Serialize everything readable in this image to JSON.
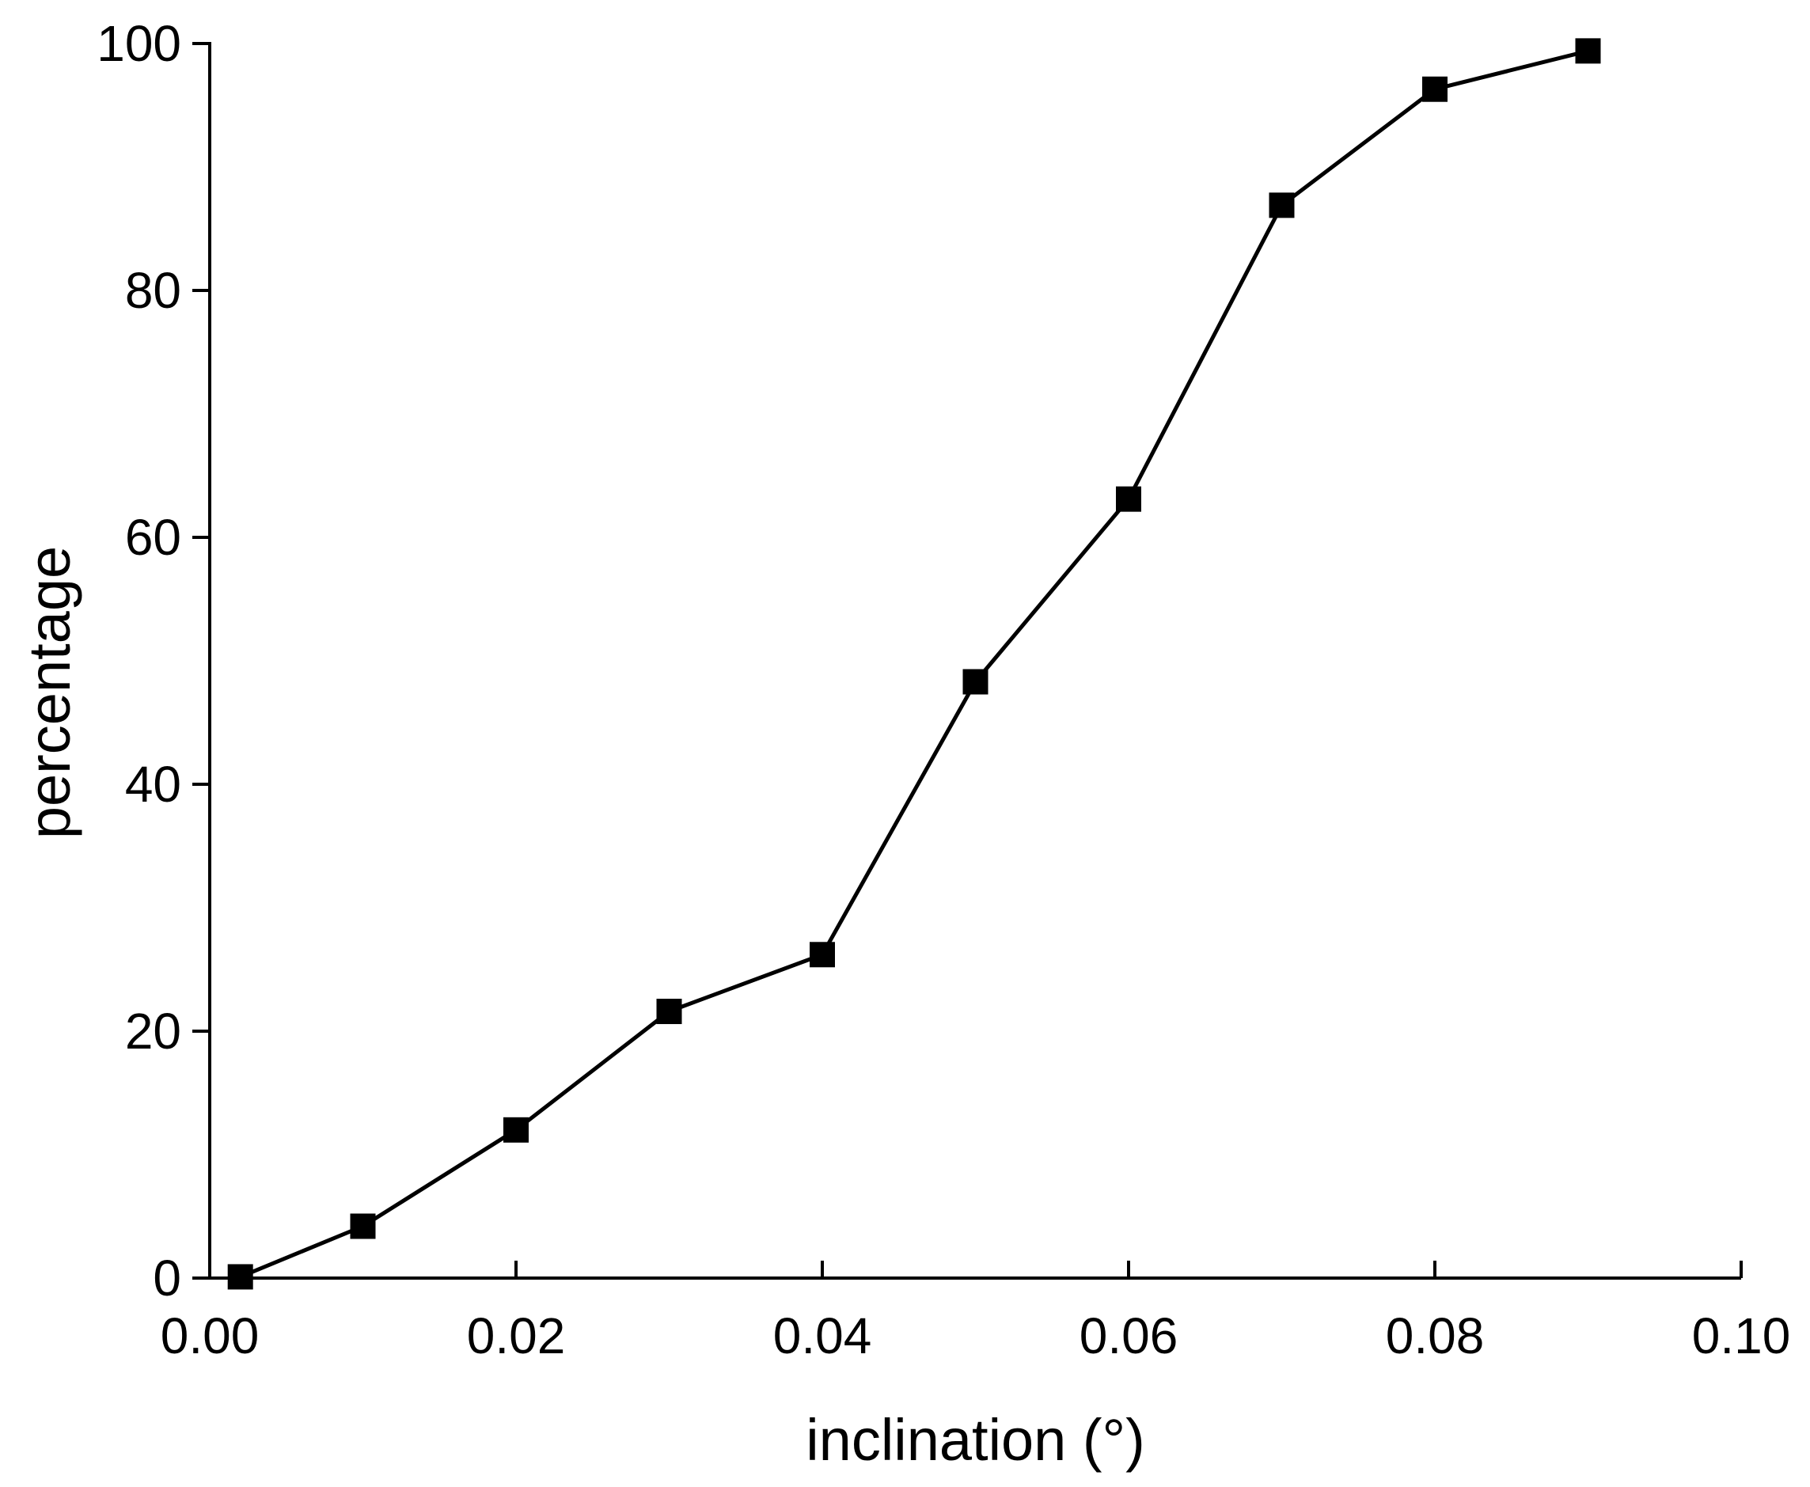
{
  "chart_data": {
    "type": "line",
    "title": "",
    "xlabel": "inclination (°)",
    "ylabel": "percentage",
    "xlim": [
      0.0,
      0.1
    ],
    "ylim": [
      0,
      100
    ],
    "x_ticks": [
      0.0,
      0.02,
      0.04,
      0.06,
      0.08,
      0.1
    ],
    "x_tick_labels": [
      "0.00",
      "0.02",
      "0.04",
      "0.06",
      "0.08",
      "0.10"
    ],
    "y_ticks": [
      0,
      20,
      40,
      60,
      80,
      100
    ],
    "y_tick_labels": [
      "0",
      "20",
      "40",
      "60",
      "80",
      "100"
    ],
    "grid": false,
    "legend": "none",
    "series": [
      {
        "marker": "square",
        "color": "#000000",
        "x": [
          0.002,
          0.01,
          0.02,
          0.03,
          0.04,
          0.05,
          0.06,
          0.07,
          0.08,
          0.09
        ],
        "y": [
          0.1,
          4.2,
          12.0,
          21.6,
          26.2,
          48.3,
          63.1,
          86.9,
          96.3,
          99.4
        ]
      }
    ]
  }
}
